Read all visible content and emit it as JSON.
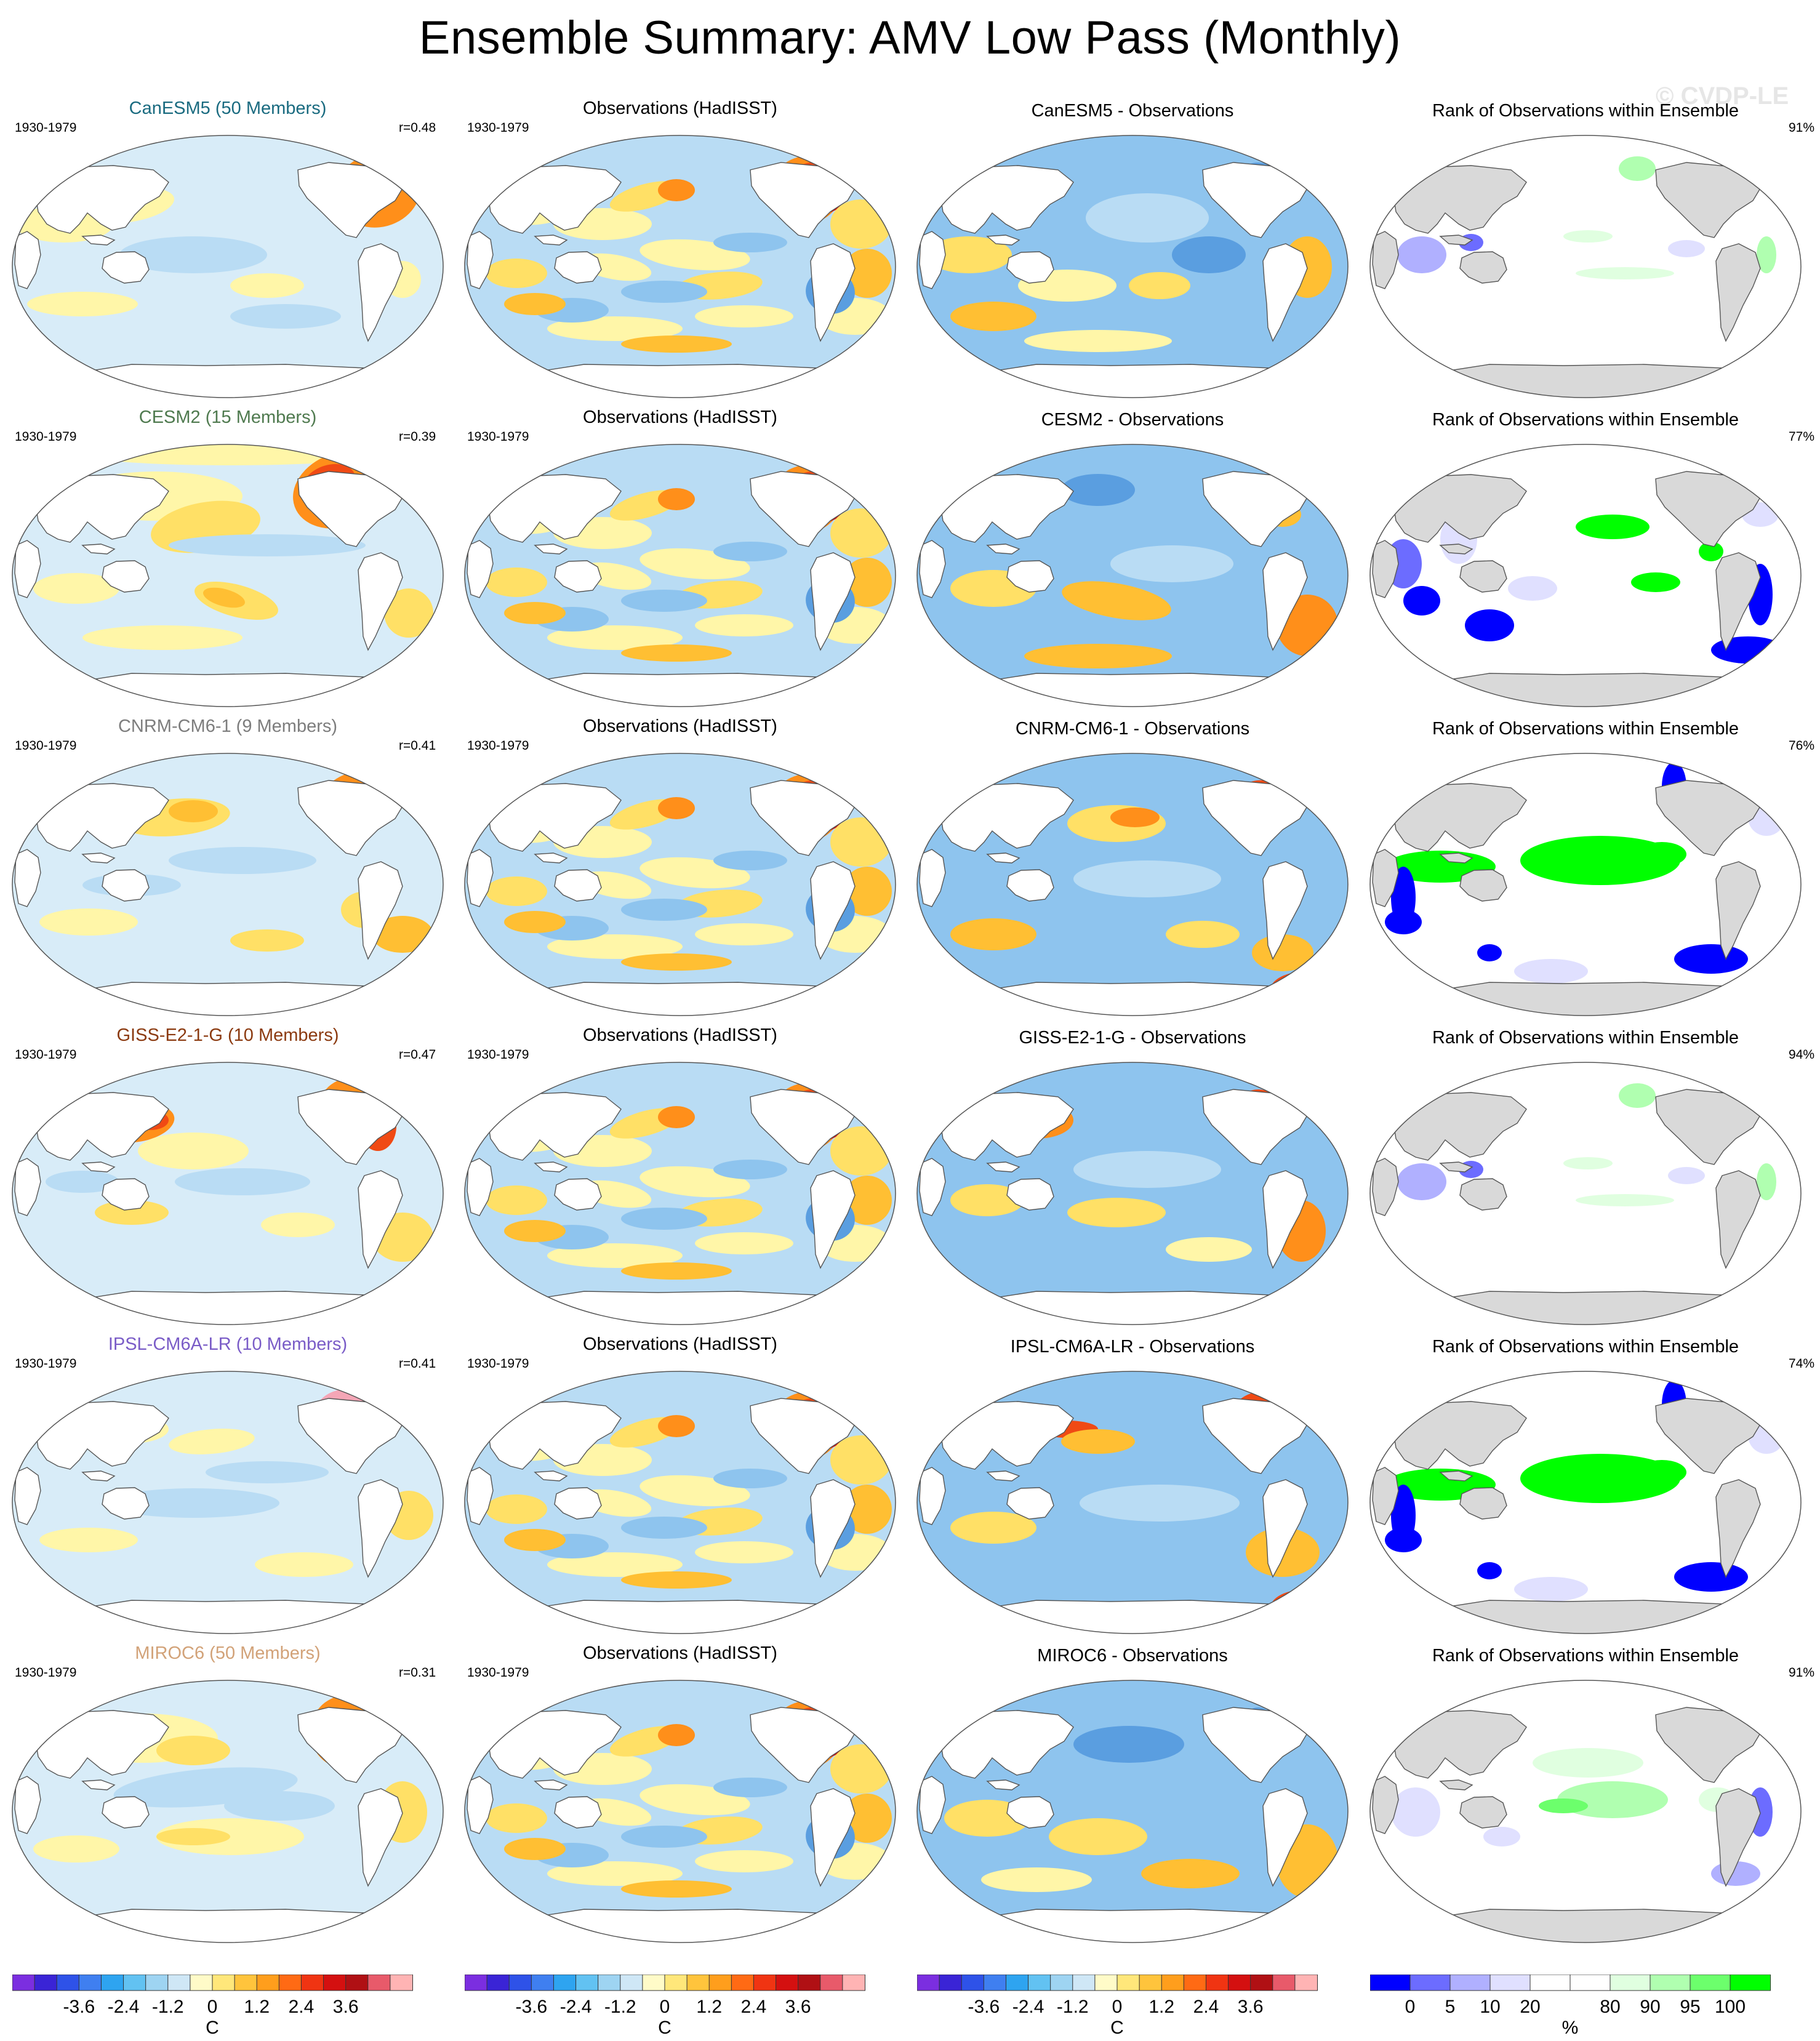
{
  "title": "Ensemble Summary: AMV Low Pass (Monthly)",
  "watermark": "© CVDP-LE",
  "obs_title": "Observations (HadISST)",
  "rank_title": "Rank of Observations within Ensemble",
  "period": "1930-1979",
  "rows": [
    {
      "model_title": "CanESM5 (50 Members)",
      "model_color": "#1a6b80",
      "r": "r=0.48",
      "diff_title": "CanESM5 - Observations",
      "rank_pct": "91%",
      "model_style": "canesm5",
      "diff_style": "canesm5",
      "rank_style": "sparse"
    },
    {
      "model_title": "CESM2 (15 Members)",
      "model_color": "#4f7a4f",
      "r": "r=0.39",
      "diff_title": "CESM2 - Observations",
      "rank_pct": "77%",
      "model_style": "cesm2",
      "diff_style": "cesm2",
      "rank_style": "mixed"
    },
    {
      "model_title": "CNRM-CM6-1 (9 Members)",
      "model_color": "#7d7d7d",
      "r": "r=0.41",
      "diff_title": "CNRM-CM6-1 - Observations",
      "rank_pct": "76%",
      "model_style": "cnrm",
      "diff_style": "cnrm",
      "rank_style": "green"
    },
    {
      "model_title": "GISS-E2-1-G (10 Members)",
      "model_color": "#8b3a10",
      "r": "r=0.47",
      "diff_title": "GISS-E2-1-G - Observations",
      "rank_pct": "94%",
      "model_style": "giss",
      "diff_style": "giss",
      "rank_style": "sparse"
    },
    {
      "model_title": "IPSL-CM6A-LR (10 Members)",
      "model_color": "#7a5cc7",
      "r": "r=0.41",
      "diff_title": "IPSL-CM6A-LR - Observations",
      "rank_pct": "74%",
      "model_style": "ipsl",
      "diff_style": "ipsl",
      "rank_style": "green"
    },
    {
      "model_title": "MIROC6 (50 Members)",
      "model_color": "#d2a278",
      "r": "r=0.31",
      "diff_title": "MIROC6 - Observations",
      "rank_pct": "91%",
      "model_style": "miroc",
      "diff_style": "miroc",
      "rank_style": "faint"
    }
  ],
  "colorbar_sst": {
    "unit": "C",
    "ticks": [
      "-3.6",
      "-2.4",
      "-1.2",
      "0",
      "1.2",
      "2.4",
      "3.6"
    ],
    "colors": [
      "#7b2ee0",
      "#3a24d6",
      "#2e52e8",
      "#3f7ff0",
      "#2ea4f0",
      "#62c2f2",
      "#9ed4f2",
      "#cfe7f6",
      "#fffbc8",
      "#ffe77a",
      "#ffc43c",
      "#ff9e1c",
      "#ff6a14",
      "#f03412",
      "#d41010",
      "#b01014",
      "#e85a6a",
      "#ffb4b4"
    ]
  },
  "colorbar_rank": {
    "unit": "%",
    "ticks": [
      "0",
      "5",
      "10",
      "20",
      "80",
      "90",
      "95",
      "100"
    ],
    "colors": [
      "#0000ff",
      "#6c6cff",
      "#b0b0ff",
      "#e0e0ff",
      "#ffffff",
      "#ffffff",
      "#e0ffe0",
      "#b0ffb0",
      "#6cff6c",
      "#00ff00"
    ]
  }
}
